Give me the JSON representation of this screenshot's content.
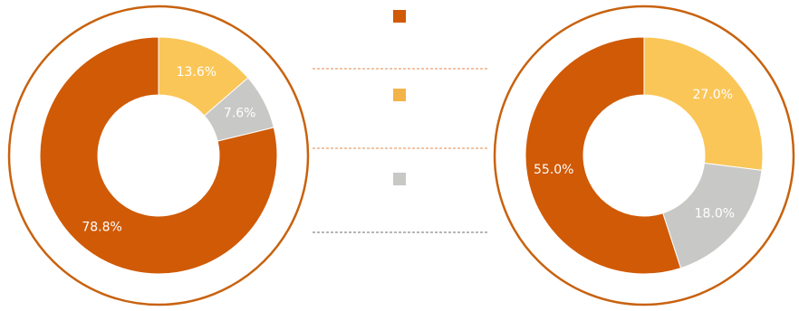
{
  "colors": {
    "ring": "#C8620E",
    "orange": "#D05A06",
    "yellow": "#FAC657",
    "gray": "#C8C8C6",
    "label": "#FFFFFF",
    "dash_orange": "#E8A070",
    "dash_gray": "#8C8C8C",
    "background": "#FFFFFF"
  },
  "legend": {
    "swatch_colors": [
      "#D05A06",
      "#F4B349",
      "#C8C8C6"
    ]
  },
  "chart_data": [
    {
      "type": "pie",
      "variant": "donut",
      "categories": [
        "",
        "",
        ""
      ],
      "values": [
        13.6,
        7.6,
        78.8
      ],
      "labels": [
        "13.6%",
        "7.6%",
        "78.8%"
      ],
      "colors": [
        "#FAC657",
        "#C8C8C6",
        "#D05A06"
      ]
    },
    {
      "type": "pie",
      "variant": "donut",
      "categories": [
        "",
        "",
        ""
      ],
      "values": [
        27.0,
        18.0,
        55.0
      ],
      "labels": [
        "27.0%",
        "18.0%",
        "55.0%"
      ],
      "colors": [
        "#FAC657",
        "#C8C8C6",
        "#D05A06"
      ]
    }
  ]
}
